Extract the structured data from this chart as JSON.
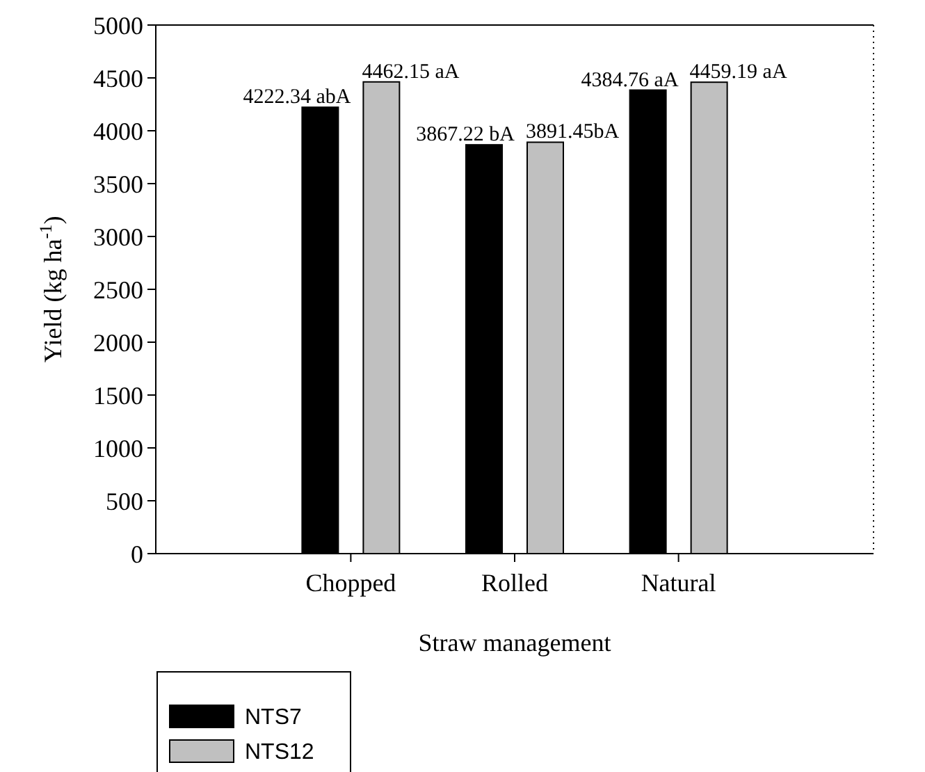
{
  "chart_data": {
    "type": "bar",
    "xlabel": "Straw management",
    "ylabel": "Yield (kg ha$^{-1}$)",
    "categories": [
      "Chopped",
      "Rolled",
      "Natural"
    ],
    "series": [
      {
        "name": "NTS7",
        "color": "#000000",
        "values": [
          4222.34,
          3867.22,
          4384.76
        ],
        "value_labels": [
          "4222.34 abA",
          "3867.22 bA",
          "4384.76 aA"
        ]
      },
      {
        "name": "NTS12",
        "color": "#c0c0c0",
        "values": [
          4462.15,
          3891.45,
          4459.19
        ],
        "value_labels": [
          "4462.15 aA",
          "3891.45bA",
          "4459.19 aA"
        ]
      }
    ],
    "ylim": [
      0,
      5000
    ],
    "yticks": [
      0,
      500,
      1000,
      1500,
      2000,
      2500,
      3000,
      3500,
      4000,
      4500,
      5000
    ],
    "grid": false,
    "legend": "bottom left"
  }
}
